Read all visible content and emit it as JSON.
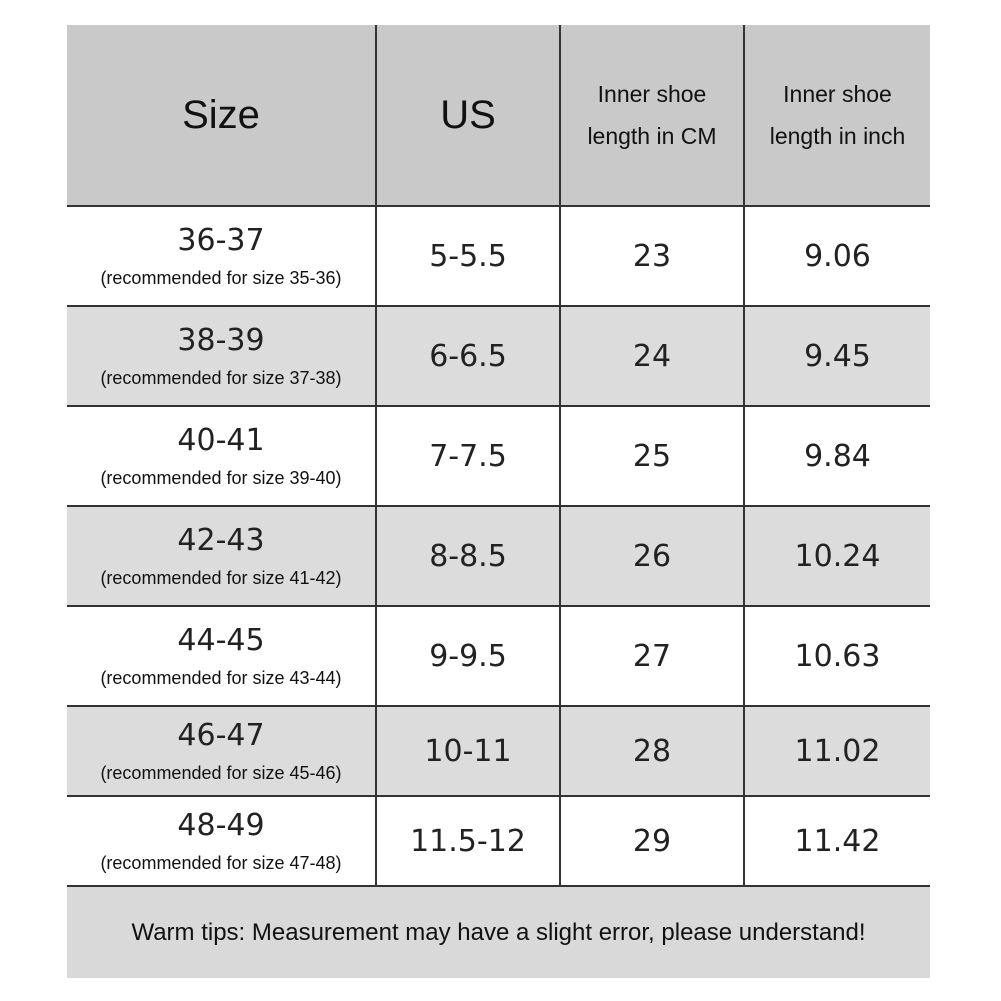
{
  "table": {
    "header": [
      "Size",
      "US",
      "Inner shoe length in CM",
      "Inner shoe length in inch"
    ],
    "rows": [
      {
        "size": "36-37",
        "note": "(recommended for size 35-36)",
        "us": "5-5.5",
        "cm": "23",
        "inch": "9.06"
      },
      {
        "size": "38-39",
        "note": "(recommended for size 37-38)",
        "us": "6-6.5",
        "cm": "24",
        "inch": "9.45"
      },
      {
        "size": "40-41",
        "note": "(recommended for size 39-40)",
        "us": "7-7.5",
        "cm": "25",
        "inch": "9.84"
      },
      {
        "size": "42-43",
        "note": "(recommended for size 41-42)",
        "us": "8-8.5",
        "cm": "26",
        "inch": "10.24"
      },
      {
        "size": "44-45",
        "note": "(recommended for size 43-44)",
        "us": "9-9.5",
        "cm": "27",
        "inch": "10.63"
      },
      {
        "size": "46-47",
        "note": "(recommended for size 45-46)",
        "us": "10-11",
        "cm": "28",
        "inch": "11.02"
      },
      {
        "size": "48-49",
        "note": "(recommended for size 47-48)",
        "us": "11.5-12",
        "cm": "29",
        "inch": "11.42"
      }
    ],
    "footer": "Warm tips: Measurement may have a slight error, please understand!"
  }
}
